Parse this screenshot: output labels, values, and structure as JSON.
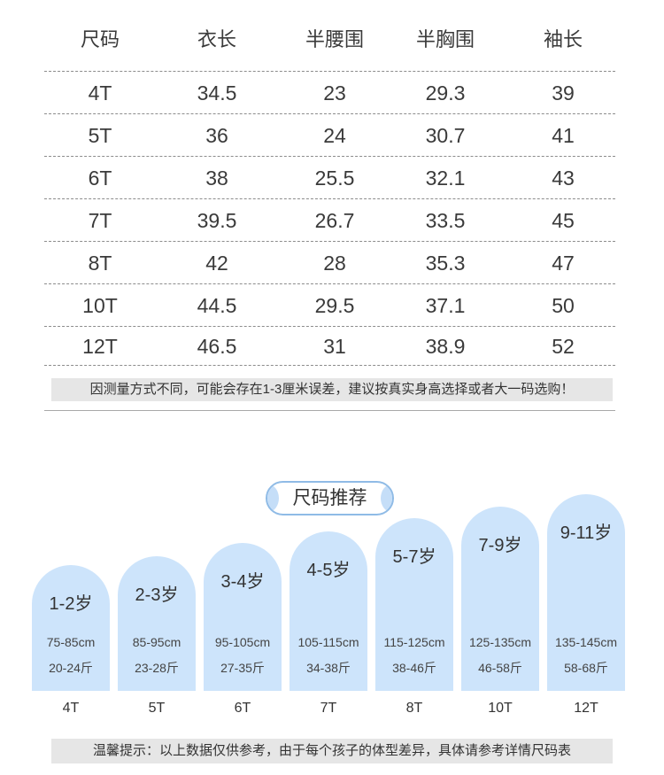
{
  "size_table": {
    "headers": [
      "尺码",
      "衣长",
      "半腰围",
      "半胸围",
      "袖长"
    ],
    "rows": [
      [
        "4T",
        "34.5",
        "23",
        "29.3",
        "39"
      ],
      [
        "5T",
        "36",
        "24",
        "30.7",
        "41"
      ],
      [
        "6T",
        "38",
        "25.5",
        "32.1",
        "43"
      ],
      [
        "7T",
        "39.5",
        "26.7",
        "33.5",
        "45"
      ],
      [
        "8T",
        "42",
        "28",
        "35.3",
        "47"
      ],
      [
        "10T",
        "44.5",
        "29.5",
        "37.1",
        "50"
      ],
      [
        "12T",
        "46.5",
        "31",
        "38.9",
        "52"
      ]
    ],
    "note": "因测量方式不同，可能会存在1-3厘米误差，建议按真实身高选择或者大一码选购！"
  },
  "recommend": {
    "title": "尺码推荐",
    "items": [
      {
        "age": "1-2岁",
        "height": "75-85cm",
        "weight": "20-24斤",
        "size": "4T"
      },
      {
        "age": "2-3岁",
        "height": "85-95cm",
        "weight": "23-28斤",
        "size": "5T"
      },
      {
        "age": "3-4岁",
        "height": "95-105cm",
        "weight": "27-35斤",
        "size": "6T"
      },
      {
        "age": "4-5岁",
        "height": "105-115cm",
        "weight": "34-38斤",
        "size": "7T"
      },
      {
        "age": "5-7岁",
        "height": "115-125cm",
        "weight": "38-46斤",
        "size": "8T"
      },
      {
        "age": "7-9岁",
        "height": "125-135cm",
        "weight": "46-58斤",
        "size": "10T"
      },
      {
        "age": "9-11岁",
        "height": "135-145cm",
        "weight": "58-68斤",
        "size": "12T"
      }
    ]
  },
  "footer_note": "温馨提示：以上数据仅供参考，由于每个孩子的体型差异，具体请参考详情尺码表",
  "colors": {
    "card_fill": "#cde4fb",
    "note_background": "#e6e6e6",
    "title_border": "#8fbbe6",
    "title_fill": "#c5def8",
    "text": "#333333"
  }
}
